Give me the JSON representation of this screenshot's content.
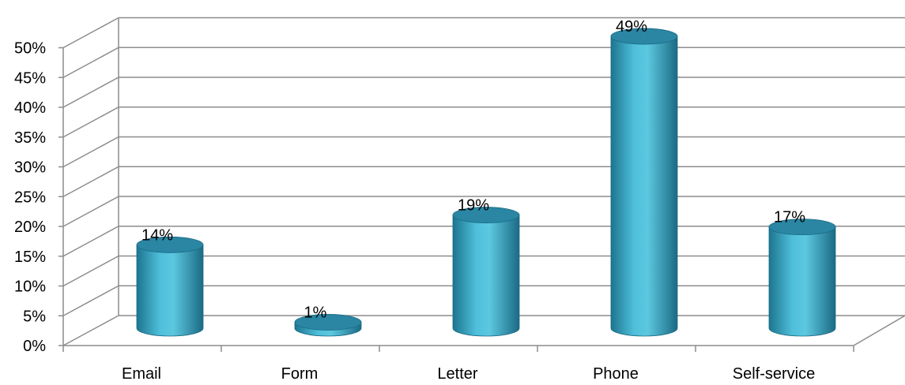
{
  "chart_data": {
    "type": "bar",
    "style": "3d-cylinder",
    "title": "",
    "xlabel": "",
    "ylabel": "",
    "categories": [
      "Email",
      "Form",
      "Letter",
      "Phone",
      "Self-service"
    ],
    "values": [
      14,
      1,
      19,
      49,
      17
    ],
    "data_labels": [
      "14%",
      "1%",
      "19%",
      "49%",
      "17%"
    ],
    "yticks": [
      "0%",
      "5%",
      "10%",
      "15%",
      "20%",
      "25%",
      "30%",
      "35%",
      "40%",
      "45%",
      "50%"
    ],
    "ylim": [
      0,
      50
    ],
    "grid": true,
    "legend": "none",
    "colors": {
      "bar": "#3aa6c4",
      "bar_light": "#6fd0e6",
      "bar_dark": "#1d6f8a",
      "top": "#2a86a3",
      "grid": "#8c8c8c"
    }
  }
}
